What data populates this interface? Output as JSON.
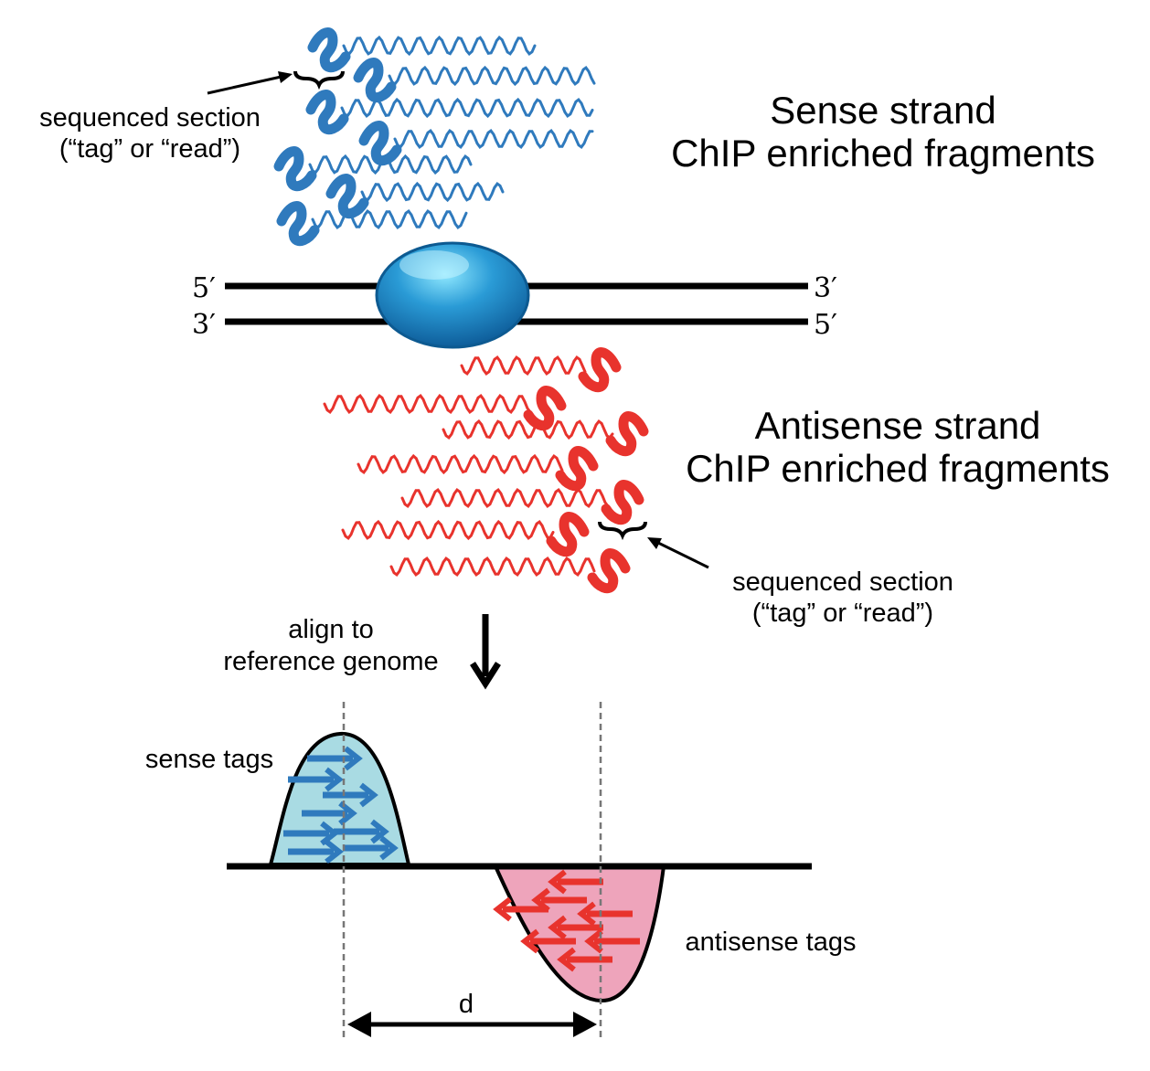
{
  "sense": {
    "title_line1": "Sense strand",
    "title_line2": "ChIP enriched fragments",
    "callout_line1": "sequenced section",
    "callout_line2": "(“tag” or  “read”)",
    "color": "#2f7abd",
    "fragment_count": 7
  },
  "antisense": {
    "title_line1": "Antisense strand",
    "title_line2": "ChIP enriched fragments",
    "callout_line1": "sequenced section",
    "callout_line2": "(“tag” or  “read”)",
    "color": "#e8332d",
    "fragment_count": 7
  },
  "dna": {
    "top_left": "5′",
    "top_right": "3′",
    "bottom_left": "3′",
    "bottom_right": "5′",
    "protein_color": "#1f8fd0"
  },
  "align": {
    "line1": "align to",
    "line2": "reference genome"
  },
  "profile": {
    "sense_label": "sense tags",
    "antisense_label": "antisense tags",
    "distance_label": "d",
    "sense_fill": "#a9dbe3",
    "antisense_fill": "#eea4bb",
    "sense_arrow_count": 8,
    "antisense_arrow_count": 8
  }
}
